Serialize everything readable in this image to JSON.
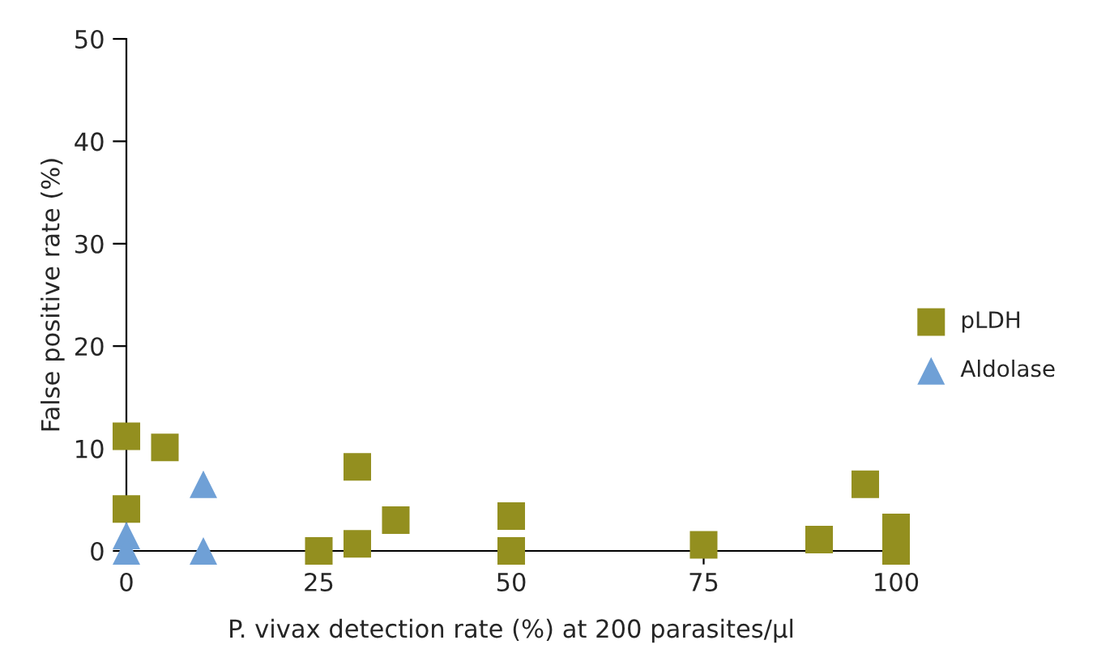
{
  "chart_data": {
    "type": "scatter",
    "xlabel": "P. vivax detection rate (%) at 200 parasites/µl",
    "ylabel": "False positive rate (%)",
    "xlim": [
      0,
      100
    ],
    "ylim": [
      0,
      50
    ],
    "xticks": [
      0,
      25,
      50,
      75,
      100
    ],
    "yticks": [
      0,
      10,
      20,
      30,
      40,
      50
    ],
    "grid": false,
    "legend": "right",
    "series": [
      {
        "name": "pLDH",
        "color": "#938f1f",
        "marker": "square",
        "x": [
          0,
          0,
          5,
          25,
          30,
          30,
          35,
          50,
          50,
          75,
          90,
          96,
          100,
          100
        ],
        "values": [
          11.2,
          4.1,
          10.1,
          0,
          8.2,
          0.7,
          3.0,
          3.4,
          0,
          0.6,
          1.1,
          6.5,
          2.3,
          0
        ]
      },
      {
        "name": "Aldolase",
        "color": "#6fa0d6",
        "marker": "triangle",
        "x": [
          0,
          0,
          10,
          10
        ],
        "values": [
          1.5,
          0,
          6.5,
          0
        ]
      }
    ]
  }
}
